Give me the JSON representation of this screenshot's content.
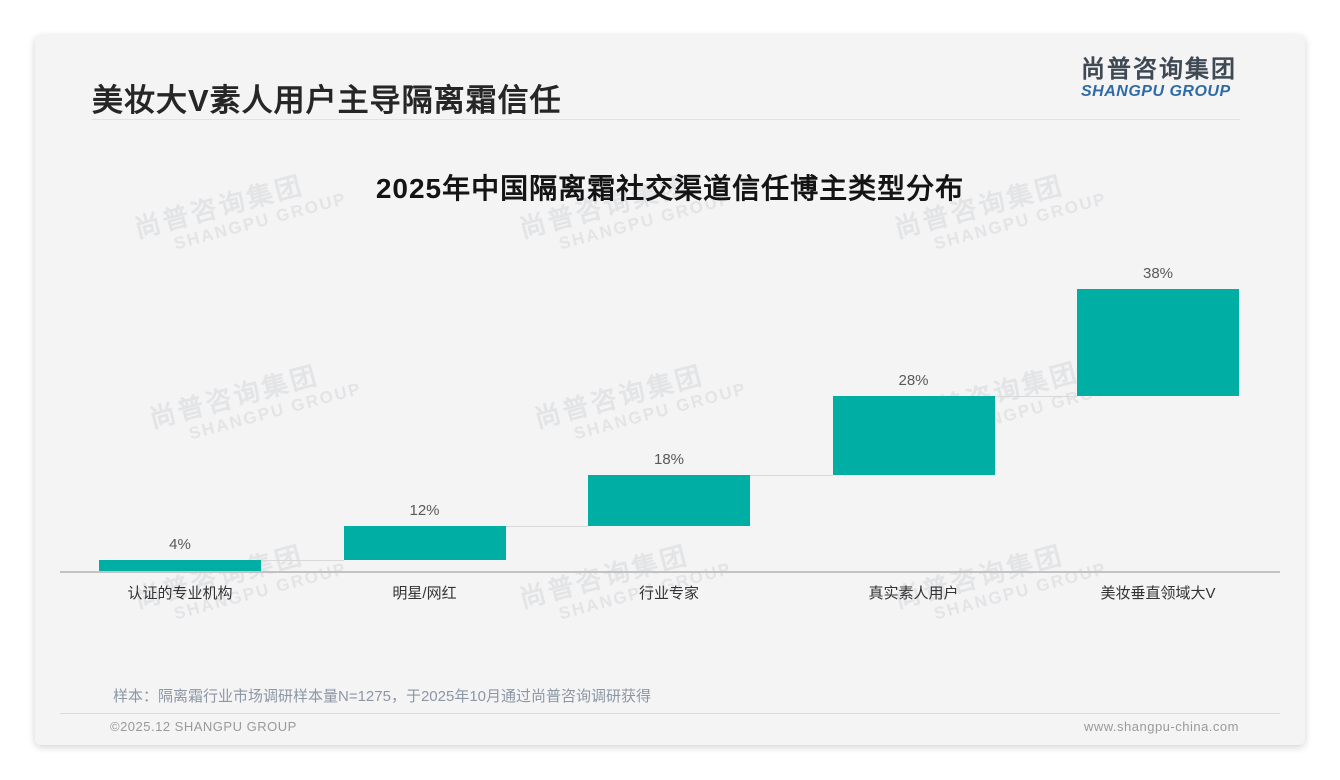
{
  "page": {
    "title": "美妆大V素人用户主导隔离霜信任",
    "logo": {
      "cn": "尚普咨询集团",
      "en": "SHANGPU GROUP"
    },
    "watermark": {
      "cn": "尚普咨询集团",
      "en": "SHANGPU GROUP"
    },
    "footnote": "样本：隔离霜行业市场调研样本量N=1275，于2025年10月通过尚普咨询调研获得",
    "footer": {
      "left": "©2025.12 SHANGPU GROUP",
      "right": "www.shangpu-china.com"
    }
  },
  "chart_data": {
    "type": "bar",
    "subtype": "waterfall-steps",
    "title": "2025年中国隔离霜社交渠道信任博主类型分布",
    "categories": [
      "认证的专业机构",
      "明星/网红",
      "行业专家",
      "真实素人用户",
      "美妆垂直领域大V"
    ],
    "values": [
      4,
      12,
      18,
      28,
      38
    ],
    "labels": [
      "4%",
      "12%",
      "18%",
      "28%",
      "38%"
    ],
    "cumulative_start": [
      0,
      4,
      16,
      34,
      62
    ],
    "cumulative_end": [
      4,
      16,
      34,
      62,
      100
    ],
    "bar_color": "#00AEA4",
    "connector_color": "#d9d9d9",
    "ylim": [
      0,
      100
    ],
    "grid": false,
    "legend": null,
    "xlabel": "",
    "ylabel": ""
  }
}
